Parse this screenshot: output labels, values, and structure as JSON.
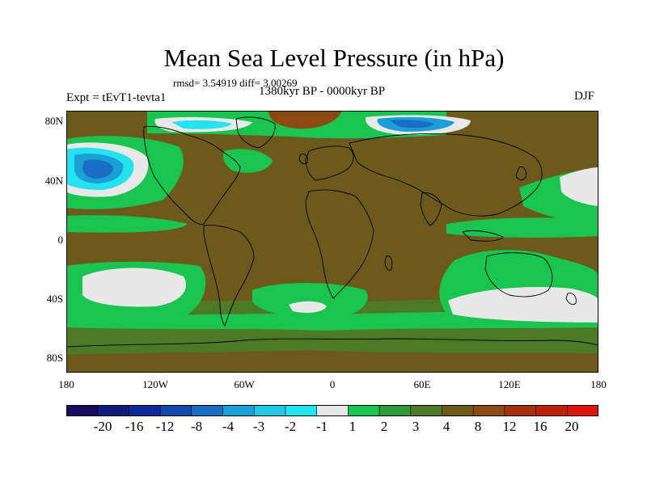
{
  "title": "Mean Sea Level Pressure (in hPa)",
  "stats": "rmsd= 3.54919 diff= 3.00269",
  "period": "1380kyr BP - 0000kyr BP",
  "experiment": "Expt = tEvT1-tevta1",
  "season": "DJF",
  "y_axis": [
    "80N",
    "40N",
    "0",
    "40S",
    "80S"
  ],
  "x_axis": [
    "180",
    "120W",
    "60W",
    "0",
    "60E",
    "120E",
    "180"
  ],
  "colorbar": {
    "labels": [
      "-20",
      "-16",
      "-12",
      "-8",
      "-4",
      "-3",
      "-2",
      "-1",
      "1",
      "2",
      "3",
      "4",
      "8",
      "12",
      "16",
      "20"
    ],
    "colors": [
      "#1a0a5e",
      "#111b7a",
      "#0f2a96",
      "#1448ad",
      "#1a6ec4",
      "#1aa0d6",
      "#22c8e6",
      "#23e3ee",
      "#e8e8e8",
      "#19c44f",
      "#2f9a3a",
      "#4d7a26",
      "#6e5a18",
      "#8a4a12",
      "#a3320c",
      "#bd2008",
      "#dd1208"
    ]
  },
  "map_colors": {
    "background": "#6b5a1c",
    "land": "#6e5a18",
    "light_green": "#19c44f",
    "mid_green": "#2f9a3a",
    "dark_green": "#4d7a26",
    "white": "#e8e8e8",
    "cyan": "#23e3ee",
    "sky": "#1aa0d6",
    "blue": "#1a6ec4",
    "red": "#8a4a12",
    "coast": "#000000"
  }
}
